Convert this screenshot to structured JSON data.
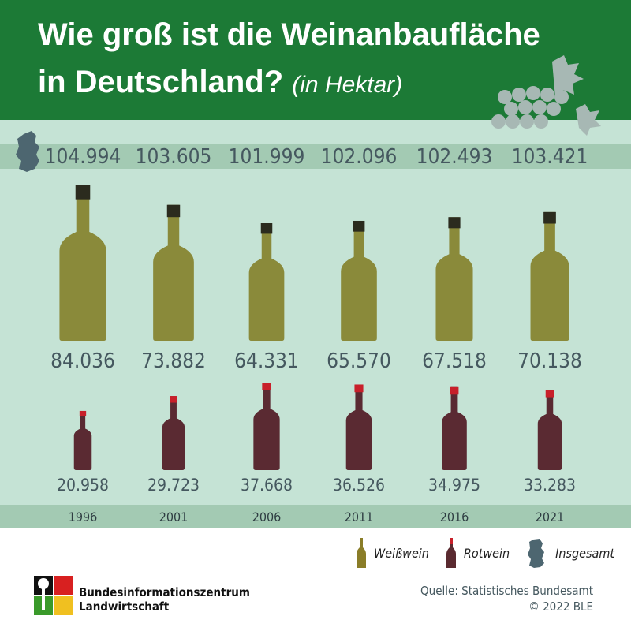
{
  "header": {
    "title_line1": "Wie groß ist die Weinanbaufläche",
    "title_line2": "in Deutschland?",
    "unit": "(in Hektar)"
  },
  "chart_data": {
    "type": "bar",
    "title": "Wie groß ist die Weinanbaufläche in Deutschland? (in Hektar)",
    "categories": [
      "1996",
      "2001",
      "2006",
      "2011",
      "2016",
      "2021"
    ],
    "series": [
      {
        "name": "Insgesamt",
        "values": [
          104994,
          103605,
          101999,
          102096,
          102493,
          103421
        ],
        "labels": [
          "104.994",
          "103.605",
          "101.999",
          "102.096",
          "102.493",
          "103.421"
        ]
      },
      {
        "name": "Weißwein",
        "values": [
          84036,
          73882,
          64331,
          65570,
          67518,
          70138
        ],
        "labels": [
          "84.036",
          "73.882",
          "64.331",
          "65.570",
          "67.518",
          "70.138"
        ]
      },
      {
        "name": "Rotwein",
        "values": [
          20958,
          29723,
          37668,
          36526,
          34975,
          33283
        ],
        "labels": [
          "20.958",
          "29.723",
          "37.668",
          "36.526",
          "34.975",
          "33.283"
        ]
      }
    ],
    "colors": {
      "white": "#8a8a2a",
      "red": "#5a2a30",
      "total": "#4d6670"
    }
  },
  "legend": {
    "white": "Weißwein",
    "red": "Rotwein",
    "total": "Insgesamt"
  },
  "footer": {
    "org_line1": "Bundesinformationszentrum",
    "org_line2": "Landwirtschaft",
    "source": "Quelle: Statistisches Bundesamt",
    "copyright": "© 2022 BLE"
  }
}
